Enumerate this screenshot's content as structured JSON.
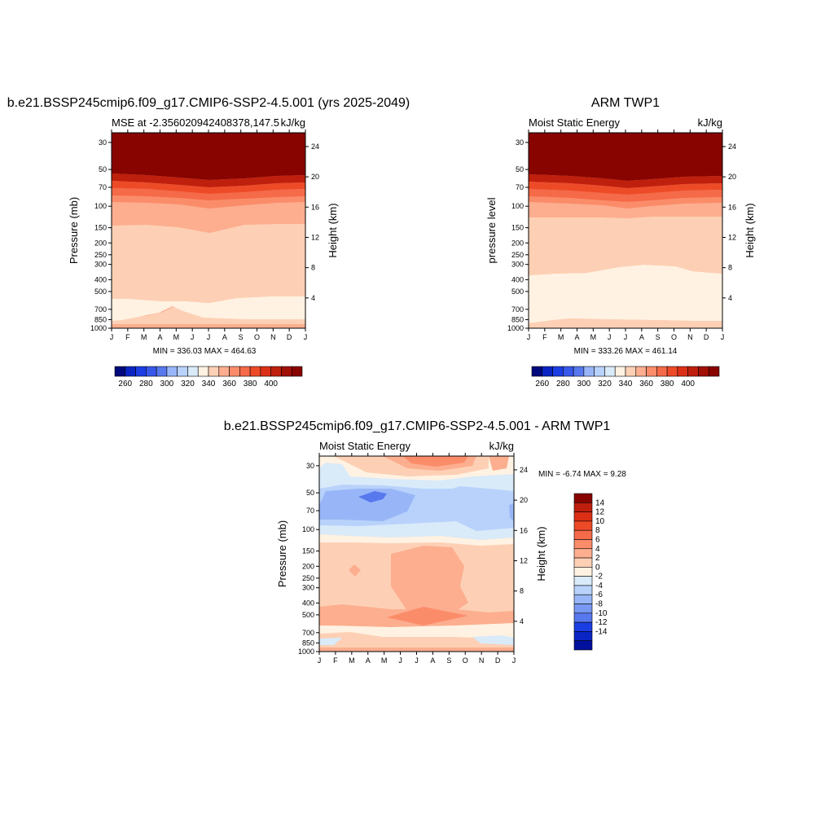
{
  "palette": {
    "positive": [
      "#fff2e2",
      "#fdd0b5",
      "#fcae8f",
      "#fb8c6a",
      "#f56a48",
      "#ed4b28",
      "#dc3016",
      "#bf1f0d",
      "#a11005",
      "#870400"
    ],
    "negative": [
      "#d9eaf9",
      "#b8d2fb",
      "#98b6f7",
      "#7898f3",
      "#5878ee",
      "#3858ea",
      "#1b3ee3",
      "#0a25c4",
      "#02109e",
      "#000a7c"
    ],
    "cb1": [
      "#000a7c",
      "#0a25c4",
      "#1b3ee3",
      "#3858ea",
      "#5878ee",
      "#98b6f7",
      "#b8d2fb",
      "#d9eaf9",
      "#fff2e2",
      "#fdd0b5",
      "#fcae8f",
      "#fb8c6a",
      "#f56a48",
      "#ed4b28",
      "#dc3016",
      "#bf1f0d",
      "#a11005",
      "#870400"
    ],
    "cb3": [
      "#870400",
      "#bf1f0d",
      "#dc3016",
      "#ed4b28",
      "#f56a48",
      "#fb8c6a",
      "#fcae8f",
      "#fdd0b5",
      "#fff2e2",
      "#d9eaf9",
      "#b8d2fb",
      "#98b6f7",
      "#7898f3",
      "#5878ee",
      "#1b3ee3",
      "#0a25c4",
      "#02109e"
    ]
  },
  "chart_data": [
    {
      "type": "heatmap",
      "title": "b.e21.BSSP245cmip6.f09_g17.CMIP6-SSP2-4.5.001 (yrs 2025-2049)",
      "subtitle_left": "MSE at -2.356020942408378,147.5",
      "subtitle_right": "kJ/kg",
      "ylabel": "Pressure (mb)",
      "ylabel_right": "Height (km)",
      "x_ticks": [
        "J",
        "F",
        "M",
        "A",
        "M",
        "J",
        "J",
        "A",
        "S",
        "O",
        "N",
        "D",
        "J"
      ],
      "y_ticks": [
        "30",
        "50",
        "70",
        "100",
        "150",
        "200",
        "250",
        "300",
        "400",
        "500",
        "700",
        "850",
        "1000"
      ],
      "y_right_ticks": [
        "24",
        "20",
        "16",
        "12",
        "8",
        "4"
      ],
      "min_max": "MIN = 336.03 MAX = 464.63",
      "colorbar_labels": [
        "260",
        "280",
        "300",
        "320",
        "340",
        "360",
        "380",
        "400"
      ],
      "ylim": [
        1000,
        25
      ],
      "contour_levels_kJkg": [
        340,
        350,
        360,
        370,
        380,
        390,
        400
      ]
    },
    {
      "type": "heatmap",
      "title": "ARM TWP1",
      "subtitle_left": "Moist Static Energy",
      "subtitle_right": "kJ/kg",
      "ylabel": "pressure level",
      "ylabel_right": "Height (km)",
      "x_ticks": [
        "J",
        "F",
        "M",
        "A",
        "M",
        "J",
        "J",
        "A",
        "S",
        "O",
        "N",
        "D",
        "J"
      ],
      "y_ticks": [
        "30",
        "50",
        "70",
        "100",
        "150",
        "200",
        "250",
        "300",
        "400",
        "500",
        "700",
        "850",
        "1000"
      ],
      "y_right_ticks": [
        "24",
        "20",
        "16",
        "12",
        "8",
        "4"
      ],
      "min_max": "MIN = 333.26 MAX = 461.14",
      "colorbar_labels": [
        "260",
        "280",
        "300",
        "320",
        "340",
        "360",
        "380",
        "400"
      ],
      "ylim": [
        1000,
        25
      ],
      "contour_levels_kJkg": [
        340,
        350,
        360,
        370,
        380,
        390,
        400
      ]
    },
    {
      "type": "heatmap",
      "title": "b.e21.BSSP245cmip6.f09_g17.CMIP6-SSP2-4.5.001 - ARM TWP1",
      "subtitle_left": "Moist Static Energy",
      "subtitle_right": "kJ/kg",
      "ylabel": "Pressure (mb)",
      "ylabel_right": "Height (km)",
      "x_ticks": [
        "J",
        "F",
        "M",
        "A",
        "M",
        "J",
        "J",
        "A",
        "S",
        "O",
        "N",
        "D",
        "J"
      ],
      "y_ticks": [
        "30",
        "50",
        "70",
        "100",
        "150",
        "200",
        "250",
        "300",
        "400",
        "500",
        "700",
        "850",
        "1000"
      ],
      "y_right_ticks": [
        "24",
        "20",
        "16",
        "12",
        "8",
        "4"
      ],
      "min_max": "MIN =  -6.74 MAX =   9.28",
      "colorbar_labels": [
        "14",
        "12",
        "10",
        "8",
        "6",
        "4",
        "2",
        "0",
        "-2",
        "-4",
        "-6",
        "-8",
        "-10",
        "-12",
        "-14"
      ],
      "ylim": [
        1000,
        25
      ],
      "contour_levels_kJkg": [
        -14,
        -12,
        -10,
        -8,
        -6,
        -4,
        -2,
        0,
        2,
        4,
        6,
        8,
        10,
        12,
        14
      ]
    }
  ]
}
